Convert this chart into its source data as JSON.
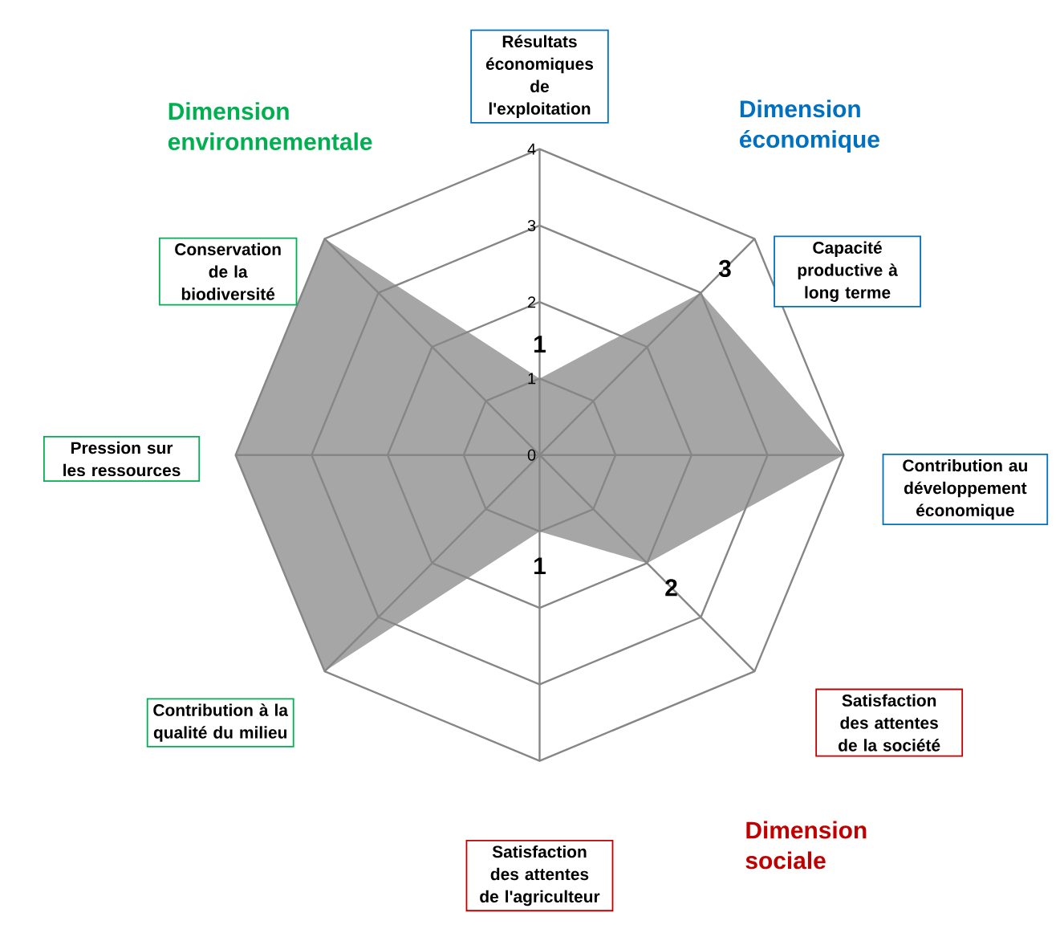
{
  "chart_data": {
    "type": "radar",
    "categories": [
      "Résultats économiques de l'exploitation",
      "Capacité productive à long terme",
      "Contribution au développement économique",
      "Satisfaction des attentes de la société",
      "Satisfaction des attentes de l'agriculteur",
      "Contribution à la qualité du milieu",
      "Pression sur les ressources",
      "Conservation de la biodiversité"
    ],
    "values": [
      1,
      3,
      4,
      2,
      1,
      4,
      4,
      4
    ],
    "value_labels": [
      "1",
      "3",
      null,
      "2",
      "1",
      null,
      null,
      null
    ],
    "color": "#a6a6a6",
    "ylim": [
      0,
      4
    ],
    "yticks": [
      0,
      1,
      2,
      3,
      4
    ],
    "grid": true,
    "annotations": [
      "Dimension environnementale",
      "Dimension économique",
      "Dimension sociale"
    ]
  }
}
